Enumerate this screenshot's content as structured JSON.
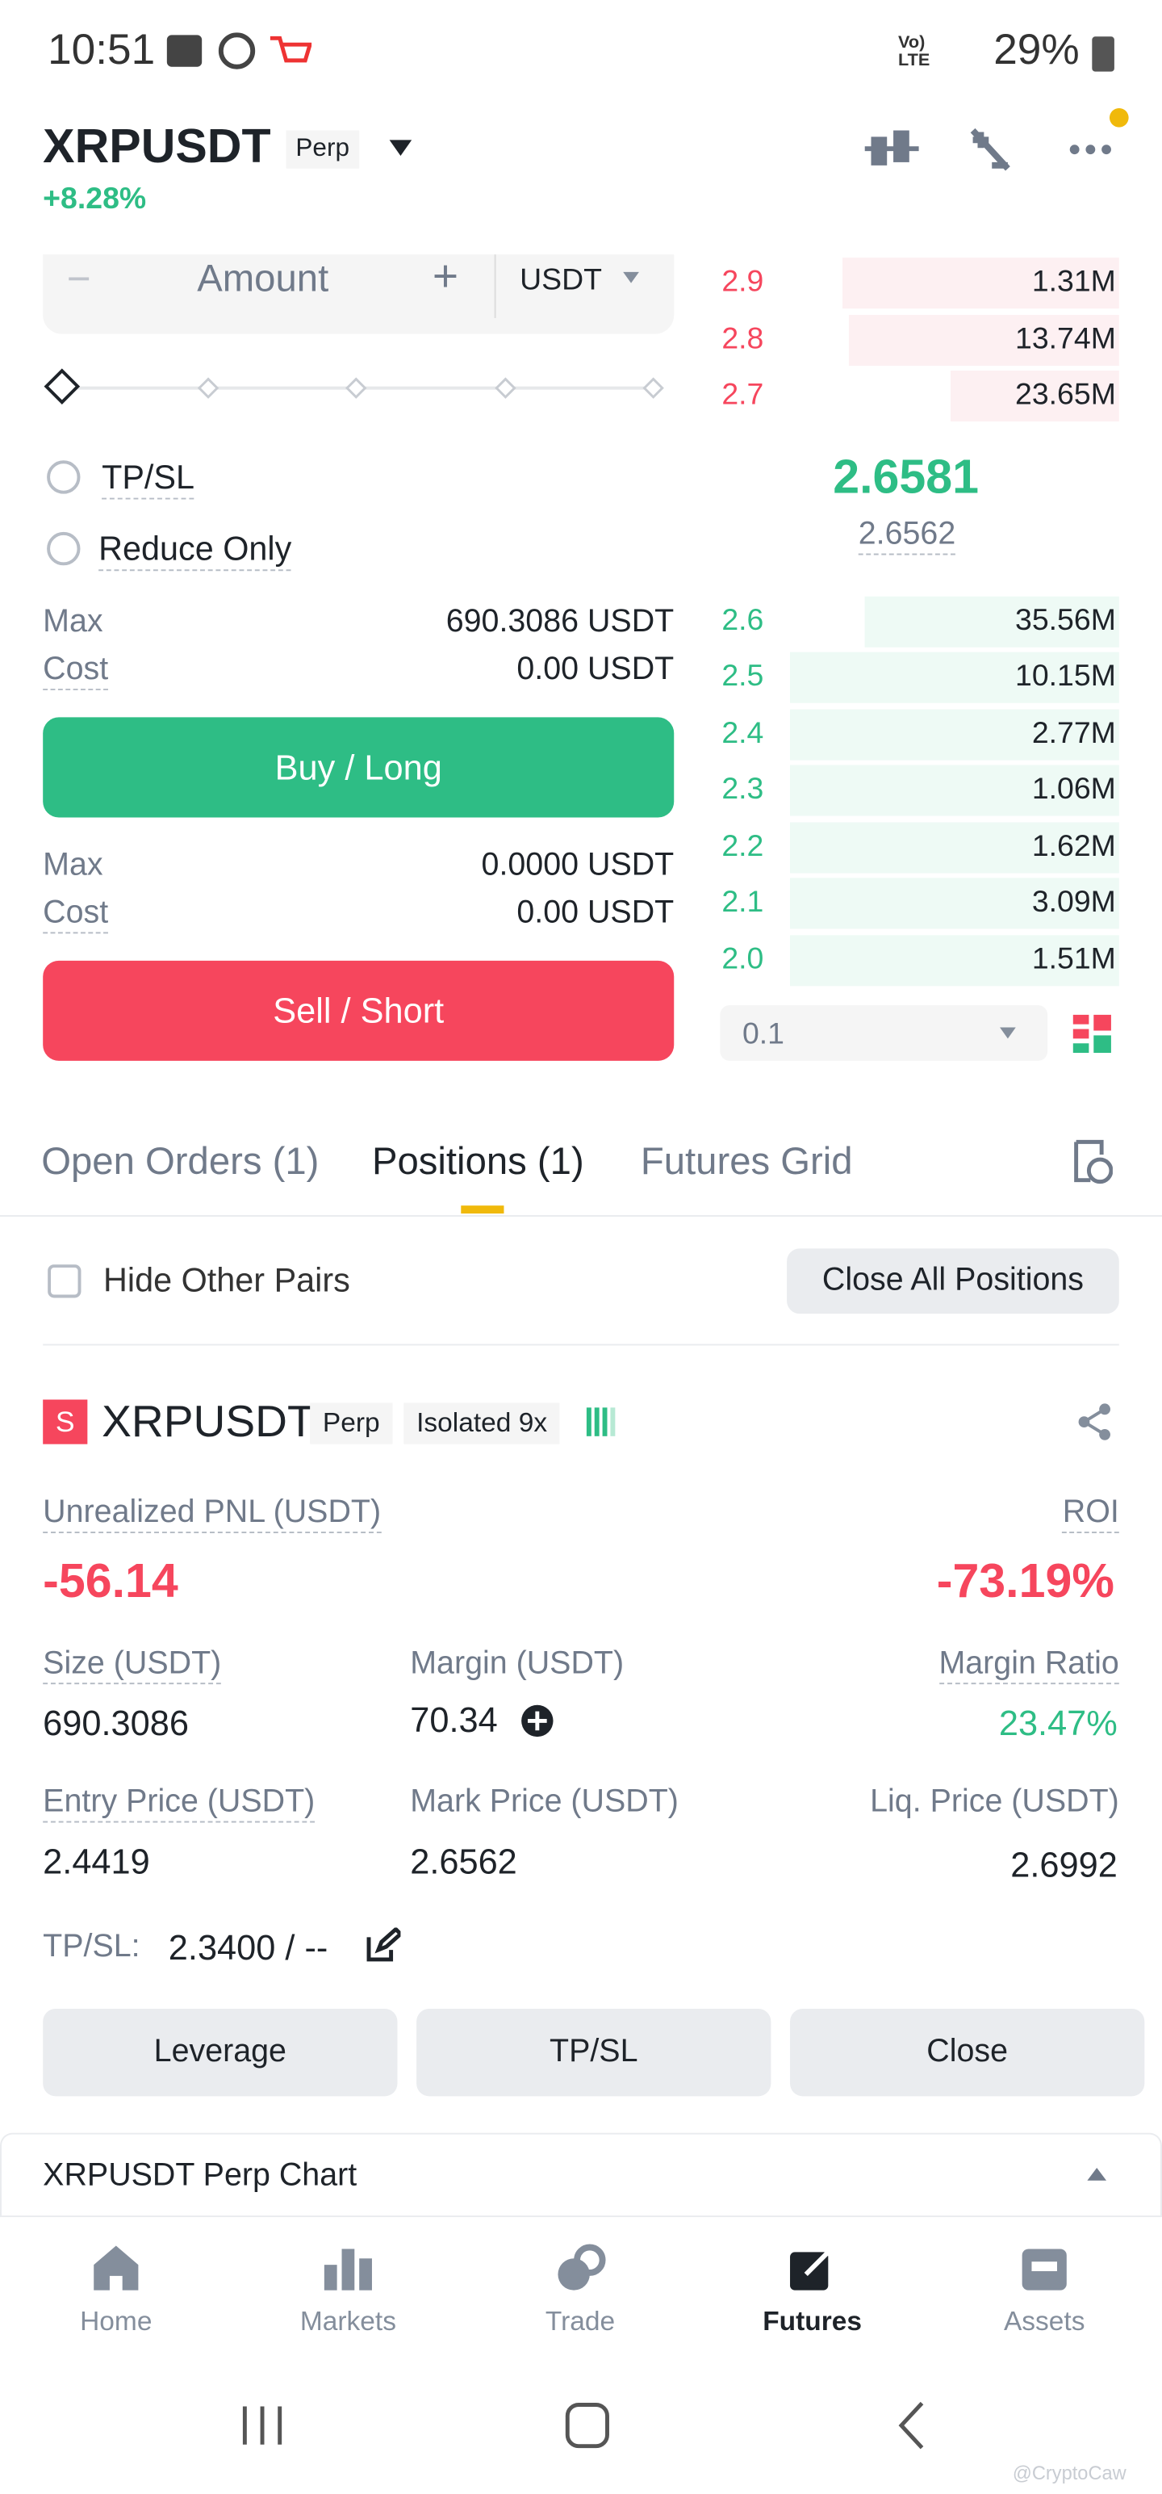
{
  "status_bar": {
    "time": "10:51",
    "network": "Vo) LTE",
    "battery": "29%"
  },
  "header": {
    "symbol": "XRPUSDT",
    "tag": "Perp",
    "change": "+8.28%"
  },
  "order_form": {
    "amount_placeholder": "Amount",
    "currency": "USDT",
    "tpsl": "TP/SL",
    "reduce_only": "Reduce Only",
    "buy": {
      "max_label": "Max",
      "max_value": "690.3086 USDT",
      "cost_label": "Cost",
      "cost_value": "0.00 USDT",
      "button": "Buy / Long"
    },
    "sell": {
      "max_label": "Max",
      "max_value": "0.0000 USDT",
      "cost_label": "Cost",
      "cost_value": "0.00 USDT",
      "button": "Sell / Short"
    }
  },
  "order_book": {
    "asks": [
      {
        "price": "2.9",
        "qty": "1.31M"
      },
      {
        "price": "2.8",
        "qty": "13.74M"
      },
      {
        "price": "2.7",
        "qty": "23.65M"
      }
    ],
    "last_price": "2.6581",
    "mark_price": "2.6562",
    "bids": [
      {
        "price": "2.6",
        "qty": "35.56M"
      },
      {
        "price": "2.5",
        "qty": "10.15M"
      },
      {
        "price": "2.4",
        "qty": "2.77M"
      },
      {
        "price": "2.3",
        "qty": "1.06M"
      },
      {
        "price": "2.2",
        "qty": "1.62M"
      },
      {
        "price": "2.1",
        "qty": "3.09M"
      },
      {
        "price": "2.0",
        "qty": "1.51M"
      }
    ],
    "precision": "0.1"
  },
  "tabs": [
    "Open Orders (1)",
    "Positions (1)",
    "Futures Grid"
  ],
  "filters": {
    "hide_other_pairs": "Hide Other Pairs",
    "close_all": "Close All Positions"
  },
  "position": {
    "side": "S",
    "symbol": "XRPUSDT",
    "tag": "Perp",
    "margin_mode": "Isolated 9x",
    "unrealized_pnl_label": "Unrealized PNL (USDT)",
    "unrealized_pnl": "-56.14",
    "roi_label": "ROI",
    "roi": "-73.19%",
    "fields": [
      {
        "label": "Size (USDT)",
        "value": "690.3086"
      },
      {
        "label": "Margin (USDT)",
        "value": "70.34"
      },
      {
        "label": "Margin Ratio",
        "value": "23.47%"
      },
      {
        "label": "Entry Price (USDT)",
        "value": "2.4419"
      },
      {
        "label": "Mark Price (USDT)",
        "value": "2.6562"
      },
      {
        "label": "Liq. Price (USDT)",
        "value": "2.6992"
      }
    ],
    "tpsl_label": "TP/SL:",
    "tpsl_value": "2.3400 / --",
    "buttons": [
      "Leverage",
      "TP/SL",
      "Close"
    ]
  },
  "chart_bar": "XRPUSDT Perp Chart",
  "nav": [
    "Home",
    "Markets",
    "Trade",
    "Futures",
    "Assets"
  ],
  "watermark": "@CryptoCaw"
}
